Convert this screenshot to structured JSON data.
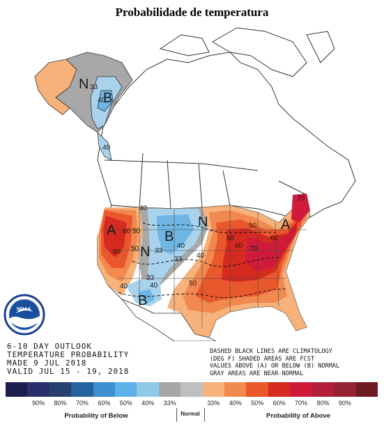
{
  "title": "Probabilidade de temperatura",
  "info_lines": [
    "6-10 DAY OUTLOOK",
    "TEMPERATURE PROBABILITY",
    "MADE  9 JUL 2018",
    "VALID  JUL 15 - 19, 2018"
  ],
  "note_lines": [
    "DASHED BLACK LINES ARE CLIMATOLOGY",
    "(DEG F) SHADED AREAS ARE FCST",
    "VALUES ABOVE (A) OR BELOW (B) NORMAL",
    "GRAY AREAS ARE NEAR-NORMAL"
  ],
  "map_labels": {
    "a_west": "A",
    "a_east": "A",
    "b_alaska": "B",
    "b_central": "B",
    "b_south": "B",
    "n_alaska": "N",
    "n_central": "N",
    "n_north": "N"
  },
  "contour_labels": [
    "33",
    "40",
    "40",
    "50",
    "60",
    "40",
    "50",
    "60",
    "33",
    "40",
    "33",
    "40",
    "50",
    "60",
    "70",
    "50",
    "33",
    "40",
    "40",
    "50",
    "60",
    "70"
  ],
  "legend": {
    "colors": [
      "#1c1f4e",
      "#2b2f6b",
      "#27406f",
      "#2563a0",
      "#3d8fd0",
      "#5db3e7",
      "#8fcbe9",
      "#a7a7a7",
      "#bfbfbf",
      "#f6b27a",
      "#f2894f",
      "#e9582c",
      "#d52a20",
      "#d01a3a",
      "#b31f3a",
      "#952333",
      "#6e1a22"
    ],
    "ticks": [
      "90%",
      "80%",
      "70%",
      "60%",
      "50%",
      "40%",
      "33%",
      "33%",
      "40%",
      "50%",
      "60%",
      "70%",
      "80%",
      "90%"
    ],
    "below_label": "Probability of Below",
    "normal_label": "Normal",
    "above_label": "Probability of Above"
  },
  "colors": {
    "above_33": "#f6b27a",
    "above_40": "#f2894f",
    "above_50": "#e9582c",
    "above_60": "#d52a20",
    "above_70": "#d01a3a",
    "below_33": "#a9d3ec",
    "below_40": "#6fb6e4",
    "normal": "#a8a8a8"
  }
}
